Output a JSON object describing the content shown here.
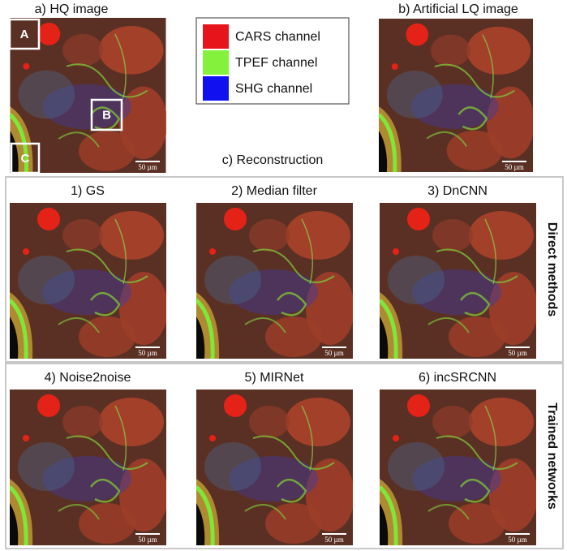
{
  "panel_a": {
    "title": "a) HQ image",
    "boxes": [
      "A",
      "B",
      "C"
    ],
    "scale_bar": "50 µm"
  },
  "panel_b": {
    "title": "b) Artificial LQ image",
    "scale_bar": "50 µm"
  },
  "legend": [
    {
      "label": "CARS channel",
      "color": "#e8141c"
    },
    {
      "label": "TPEF channel",
      "color": "#84f23c"
    },
    {
      "label": "SHG channel",
      "color": "#1010f0"
    }
  ],
  "reconstruction": {
    "title": "c) Reconstruction",
    "groups": [
      {
        "label": "Direct methods",
        "methods": [
          {
            "title": "1) GS",
            "scale_bar": "50 µm"
          },
          {
            "title": "2) Median filter",
            "scale_bar": "50 µm"
          },
          {
            "title": "3) DnCNN",
            "scale_bar": "50 µm"
          }
        ]
      },
      {
        "label": "Trained networks",
        "methods": [
          {
            "title": "4) Noise2noise",
            "scale_bar": "50 µm"
          },
          {
            "title": "5) MIRNet",
            "scale_bar": "50 µm"
          },
          {
            "title": "6) incSRCNN",
            "scale_bar": "50 µm"
          }
        ]
      }
    ]
  }
}
